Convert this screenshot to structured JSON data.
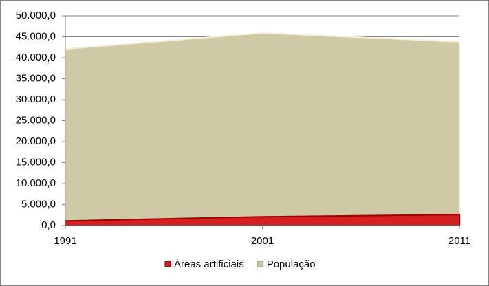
{
  "chart_data": {
    "type": "area",
    "categories": [
      "1991",
      "2001",
      "2011"
    ],
    "series": [
      {
        "name": "População",
        "color": "#cfc9a6",
        "values": [
          42100,
          45900,
          43800
        ]
      },
      {
        "name": "Áreas artificiais",
        "color": "#d42020",
        "values": [
          1100,
          2100,
          2600
        ]
      }
    ],
    "legend_order": [
      1,
      0
    ],
    "ylim": [
      0,
      50000
    ],
    "yticks": [
      {
        "value": 0,
        "label": "0,0"
      },
      {
        "value": 5000,
        "label": "5.000,0"
      },
      {
        "value": 10000,
        "label": "10.000,0"
      },
      {
        "value": 15000,
        "label": "15.000,0"
      },
      {
        "value": 20000,
        "label": "20.000,0"
      },
      {
        "value": 25000,
        "label": "25.000,0"
      },
      {
        "value": 30000,
        "label": "30.000,0"
      },
      {
        "value": 35000,
        "label": "35.000,0"
      },
      {
        "value": 40000,
        "label": "40.000,0"
      },
      {
        "value": 45000,
        "label": "45.000,0"
      },
      {
        "value": 50000,
        "label": "50.000,0"
      }
    ],
    "grid": true,
    "legend": "bottom"
  }
}
